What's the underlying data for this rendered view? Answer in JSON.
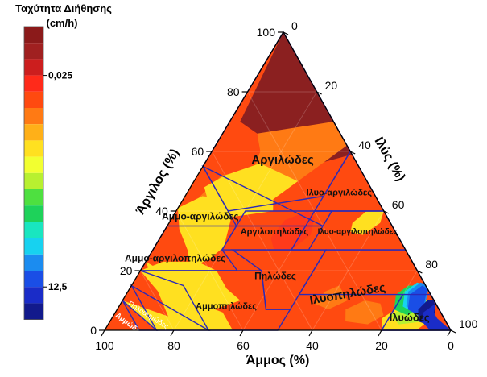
{
  "chart_data": {
    "type": "heatmap",
    "subtype": "ternary",
    "legend": {
      "title_lines": [
        "Ταχύτητα Διήθησης",
        "(cm/h)"
      ],
      "placement": "left",
      "colors": [
        "#8b1a1a",
        "#a02020",
        "#cc1e1e",
        "#ff2a1a",
        "#ff4a10",
        "#ff7a14",
        "#ffb018",
        "#ffe020",
        "#f2ff30",
        "#b8f030",
        "#4ee040",
        "#1ed25a",
        "#19e6c0",
        "#17d2f0",
        "#1b8cf0",
        "#1a4ee6",
        "#1a2cc8",
        "#121a8c"
      ],
      "labeled_values": [
        {
          "text": "0,025",
          "after_band": 2
        },
        {
          "text": "12,5",
          "after_band": 15
        }
      ]
    },
    "axes": {
      "clay": {
        "label": "Άργιλος (%)",
        "ticks": [
          {
            "value": 0,
            "text": "0"
          },
          {
            "value": 20,
            "text": "20"
          },
          {
            "value": 40,
            "text": "40"
          },
          {
            "value": 60,
            "text": "60"
          },
          {
            "value": 80,
            "text": "80"
          },
          {
            "value": 100,
            "text": "100"
          }
        ]
      },
      "silt": {
        "label": "Ιλύς (%)",
        "ticks": [
          {
            "value": 0,
            "text": "0"
          },
          {
            "value": 20,
            "text": "20"
          },
          {
            "value": 40,
            "text": "40"
          },
          {
            "value": 60,
            "text": "60"
          },
          {
            "value": 80,
            "text": "80"
          },
          {
            "value": 100,
            "text": "100"
          }
        ]
      },
      "sand": {
        "label": "Άμμος (%)",
        "ticks": [
          {
            "value": 100,
            "text": "100"
          },
          {
            "value": 80,
            "text": "80"
          },
          {
            "value": 60,
            "text": "60"
          },
          {
            "value": 40,
            "text": "40"
          },
          {
            "value": 20,
            "text": "20"
          },
          {
            "value": 0,
            "text": "0"
          }
        ]
      }
    },
    "contours": [
      {
        "name": "band-0",
        "color": "#8b2020",
        "vertices": [
          [
            100,
            0
          ],
          [
            70,
            30
          ],
          [
            59,
            41
          ],
          [
            56,
            33
          ],
          [
            56,
            25
          ],
          [
            58,
            20
          ],
          [
            60,
            15
          ],
          [
            66,
            10
          ],
          [
            70,
            3
          ]
        ]
      },
      {
        "name": "band-1",
        "color": "#ff7a14",
        "vertices": [
          [
            70,
            30
          ],
          [
            62,
            38
          ],
          [
            56,
            34
          ],
          [
            47,
            28
          ],
          [
            42,
            24
          ],
          [
            38,
            16
          ],
          [
            41,
            8
          ],
          [
            44,
            4
          ],
          [
            52,
            7
          ],
          [
            54,
            15
          ],
          [
            60,
            14
          ],
          [
            66,
            10
          ]
        ]
      },
      {
        "name": "band-2",
        "color": "#ffe020",
        "vertices": [
          [
            50,
            30
          ],
          [
            44,
            26
          ],
          [
            40,
            28
          ],
          [
            38,
            17
          ],
          [
            42,
            13
          ],
          [
            44,
            7
          ],
          [
            48,
            4
          ],
          [
            52,
            8
          ],
          [
            56,
            16
          ]
        ]
      },
      {
        "name": "band-3",
        "color": "#ffe020",
        "vertices": [
          [
            40,
            60
          ],
          [
            36,
            61
          ],
          [
            32,
            58
          ],
          [
            33,
            54
          ],
          [
            36,
            53
          ],
          [
            40,
            55
          ]
        ]
      },
      {
        "name": "band-4",
        "color": "#ffe020",
        "vertices": [
          [
            41,
            0
          ],
          [
            45,
            5
          ],
          [
            44,
            13
          ],
          [
            38,
            17
          ],
          [
            28,
            20
          ],
          [
            24,
            18
          ],
          [
            21,
            14
          ],
          [
            27,
            10
          ],
          [
            34,
            4
          ]
        ]
      },
      {
        "name": "band-5",
        "color": "#ff3a1a",
        "vertices": [
          [
            38,
            41
          ],
          [
            32,
            43
          ],
          [
            27,
            40
          ],
          [
            27,
            35
          ],
          [
            31,
            32
          ],
          [
            37,
            33
          ],
          [
            40,
            38
          ]
        ]
      },
      {
        "name": "band-6",
        "color": "#ffe020",
        "vertices": [
          [
            20,
            0
          ],
          [
            23,
            5
          ],
          [
            23,
            15
          ],
          [
            20,
            22
          ],
          [
            14,
            28
          ],
          [
            10,
            34
          ],
          [
            7,
            28
          ],
          [
            5,
            23
          ],
          [
            7,
            16
          ],
          [
            12,
            10
          ]
        ]
      },
      {
        "name": "band-7",
        "color": "#ffe020",
        "vertices": [
          [
            23,
            0
          ],
          [
            20,
            6
          ],
          [
            14,
            15
          ],
          [
            10,
            20
          ],
          [
            6,
            31
          ],
          [
            0,
            37
          ],
          [
            0,
            20
          ]
        ]
      },
      {
        "name": "band-8",
        "color": "#ffe020",
        "vertices": [
          [
            10,
            0
          ],
          [
            8,
            6
          ],
          [
            6,
            12
          ],
          [
            4,
            18
          ],
          [
            2,
            22
          ],
          [
            0,
            23
          ],
          [
            0,
            15
          ]
        ]
      },
      {
        "name": "band-9",
        "color": "#ff7a14",
        "vertices": [
          [
            9,
            75
          ],
          [
            5,
            78
          ],
          [
            2,
            75
          ],
          [
            3,
            68
          ],
          [
            7,
            66
          ],
          [
            10,
            70
          ]
        ]
      },
      {
        "name": "band-10",
        "color": "#ff7a14",
        "vertices": [
          [
            13,
            62
          ],
          [
            10,
            65
          ],
          [
            7,
            61
          ],
          [
            9,
            56
          ],
          [
            13,
            57
          ],
          [
            15,
            60
          ]
        ]
      },
      {
        "name": "band-11",
        "color": "#ffe020",
        "vertices": [
          [
            7,
            90
          ],
          [
            3,
            92
          ],
          [
            0,
            90
          ],
          [
            0,
            80
          ],
          [
            4,
            78
          ],
          [
            9,
            82
          ]
        ]
      },
      {
        "name": "band-12",
        "color": "#b8f030",
        "vertices": [
          [
            10,
            90
          ],
          [
            6,
            92
          ],
          [
            3,
            91
          ],
          [
            2,
            84
          ],
          [
            5,
            80
          ],
          [
            10,
            85
          ]
        ]
      },
      {
        "name": "band-13",
        "color": "#1ed25a",
        "vertices": [
          [
            15,
            85
          ],
          [
            11,
            86
          ],
          [
            8,
            87
          ],
          [
            5,
            85
          ],
          [
            7,
            80
          ],
          [
            12,
            78
          ],
          [
            15,
            80
          ]
        ]
      },
      {
        "name": "band-14",
        "color": "#17d2f0",
        "vertices": [
          [
            15,
            85
          ],
          [
            12,
            86
          ],
          [
            9,
            87
          ],
          [
            6,
            86
          ],
          [
            8,
            82
          ],
          [
            13,
            80
          ],
          [
            16,
            82
          ]
        ]
      },
      {
        "name": "band-15",
        "color": "#1b8cf0",
        "vertices": [
          [
            15,
            86
          ],
          [
            12,
            87
          ],
          [
            9,
            88
          ],
          [
            6,
            87
          ],
          [
            8,
            83
          ],
          [
            13,
            81
          ],
          [
            16,
            83
          ]
        ]
      },
      {
        "name": "band-16",
        "color": "#1a4ee6",
        "vertices": [
          [
            14,
            86
          ],
          [
            11,
            87
          ],
          [
            8,
            88
          ],
          [
            5,
            88
          ],
          [
            7,
            84
          ],
          [
            12,
            82
          ],
          [
            15,
            84
          ]
        ]
      },
      {
        "name": "band-17",
        "color": "#121a8c",
        "vertices": [
          [
            10,
            90
          ],
          [
            7,
            92
          ],
          [
            4,
            93
          ],
          [
            2,
            92
          ],
          [
            3,
            89
          ],
          [
            7,
            87
          ],
          [
            10,
            88
          ]
        ]
      },
      {
        "name": "band-18",
        "color": "#1a2cc8",
        "vertices": [
          [
            9,
            91
          ],
          [
            6,
            92
          ],
          [
            4,
            94
          ],
          [
            0,
            100
          ],
          [
            0,
            94
          ],
          [
            3,
            90
          ],
          [
            6,
            89
          ]
        ]
      }
    ],
    "classes": [
      {
        "name": "class-clay",
        "label": "Αργιλώδες",
        "vertices": [
          [
            100,
            0
          ],
          [
            60,
            40
          ],
          [
            45,
            40
          ],
          [
            40,
            15
          ],
          [
            55,
            0
          ]
        ]
      },
      {
        "name": "class-sandy-clay",
        "label": "Αμμο-αργιλώδες",
        "vertices": [
          [
            55,
            0
          ],
          [
            35,
            20
          ],
          [
            35,
            45
          ]
        ]
      },
      {
        "name": "class-silty-clay",
        "label": "Ιλυο-αργιλώδες",
        "vertices": [
          [
            60,
            40
          ],
          [
            40,
            60
          ],
          [
            40,
            40
          ]
        ]
      },
      {
        "name": "class-clay-loam",
        "label": "Αργιλοπηλώδες",
        "vertices": [
          [
            40,
            20
          ],
          [
            40,
            45
          ],
          [
            27,
            45
          ],
          [
            27,
            20
          ]
        ]
      },
      {
        "name": "class-silty-clay-loam",
        "label": "Ιλυο-αργιλοπηλώδες",
        "vertices": [
          [
            40,
            40
          ],
          [
            40,
            60
          ],
          [
            27,
            73
          ],
          [
            27,
            40
          ]
        ]
      },
      {
        "name": "class-sandy-clay-loam",
        "label": "Αμμο-αργιλοπηλώδες",
        "vertices": [
          [
            35,
            0
          ],
          [
            35,
            20
          ],
          [
            27,
            20
          ],
          [
            20,
            28
          ],
          [
            20,
            0
          ]
        ]
      },
      {
        "name": "class-loam",
        "label": "Πηλώδες",
        "vertices": [
          [
            27,
            23
          ],
          [
            27,
            50
          ],
          [
            7,
            50
          ],
          [
            7,
            43
          ],
          [
            20,
            35
          ]
        ]
      },
      {
        "name": "class-silt-loam",
        "label": "Ιλυοπηλώδες",
        "vertices": [
          [
            27,
            50
          ],
          [
            27,
            73
          ],
          [
            12,
            88
          ],
          [
            0,
            100
          ],
          [
            0,
            80
          ],
          [
            12,
            80
          ],
          [
            12,
            50
          ]
        ]
      },
      {
        "name": "class-sandy-loam",
        "label": "Αμμοπηλώδες",
        "vertices": [
          [
            20,
            0
          ],
          [
            20,
            35
          ],
          [
            7,
            43
          ],
          [
            7,
            50
          ],
          [
            0,
            50
          ],
          [
            0,
            30
          ],
          [
            15,
            15
          ]
        ]
      },
      {
        "name": "class-loamy-sand",
        "label": "Πηλοαμμώδες",
        "vertices": [
          [
            15,
            0
          ],
          [
            0,
            15
          ],
          [
            0,
            30
          ]
        ]
      },
      {
        "name": "class-sand",
        "label": "Αμμώδες",
        "vertices": [
          [
            10,
            0
          ],
          [
            0,
            10
          ],
          [
            0,
            15
          ]
        ]
      },
      {
        "name": "class-silt",
        "label": "Ιλυώδες",
        "vertices": [
          [
            12,
            80
          ],
          [
            12,
            88
          ],
          [
            0,
            100
          ],
          [
            0,
            80
          ]
        ]
      }
    ]
  }
}
